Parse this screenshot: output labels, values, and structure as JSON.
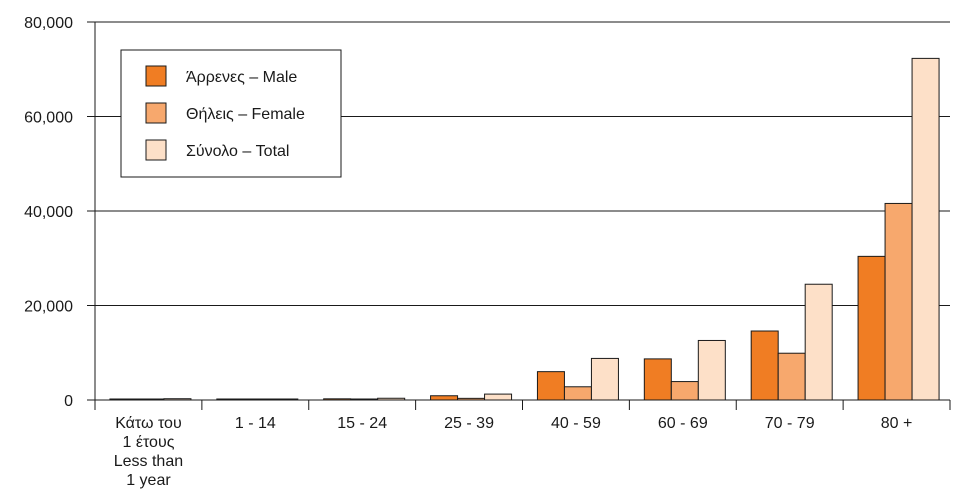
{
  "chart_data": {
    "type": "bar",
    "categories": [
      [
        "Κάτω του",
        "1 έτους",
        "Less than",
        "1 year"
      ],
      [
        "1 - 14"
      ],
      [
        "15 - 24"
      ],
      [
        "25 - 39"
      ],
      [
        "40 - 59"
      ],
      [
        "60 - 69"
      ],
      [
        "70 - 79"
      ],
      [
        "80 +"
      ]
    ],
    "series": [
      {
        "name": "Άρρενες – Male",
        "color": "#f07d23",
        "values": [
          160,
          100,
          250,
          900,
          6000,
          8700,
          14600,
          30400
        ]
      },
      {
        "name": "Θήλεις – Female",
        "color": "#f7a86d",
        "values": [
          110,
          80,
          120,
          350,
          2800,
          3900,
          9900,
          41600
        ]
      },
      {
        "name": "Σύνολο – Total",
        "color": "#fde0c8",
        "values": [
          270,
          180,
          370,
          1250,
          8800,
          12600,
          24500,
          72300
        ]
      }
    ],
    "y_ticks": [
      "0",
      "20,000",
      "40,000",
      "60,000",
      "80,000"
    ],
    "ylim": [
      0,
      80000
    ],
    "grid": true,
    "legend_position": "top-left"
  }
}
